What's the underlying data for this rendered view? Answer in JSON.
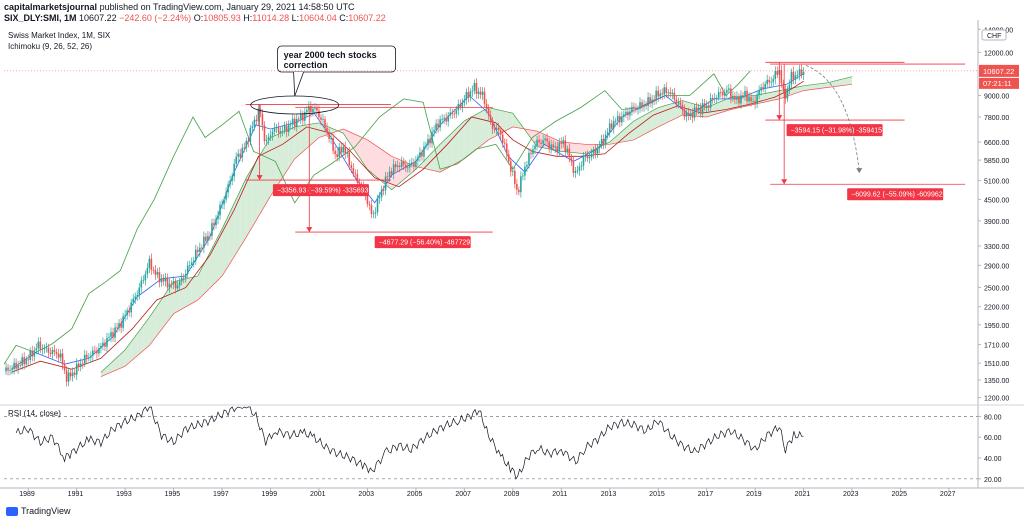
{
  "header": {
    "author": "capitalmarketsjournal",
    "published": "published on TradingView.com, January 29, 2021 14:58:50 UTC",
    "symbol": "SIX_DLY:SMI, 1M",
    "last": "10607.22",
    "change": "−242.60 (−2.24%)",
    "o_label": "O:",
    "o_value": "10805.93",
    "h_label": "H:",
    "h_value": "11014.28",
    "l_label": "L:",
    "l_value": "10604.04",
    "c_label": "C:",
    "c_value": "10607.22"
  },
  "legend": {
    "instrument": "Swiss Market Index, 1M, SIX",
    "indicator": "Ichimoku (9, 26, 52, 26)",
    "rsi": "RSI (14, close)"
  },
  "footer": {
    "brand": "TradingView"
  },
  "colors": {
    "up": "#26a69a",
    "down": "#ef5350",
    "conversion": "#2962ff",
    "base": "#b71c1c",
    "lagging": "#43a047",
    "cloud_bull": "#c8e6c9",
    "cloud_bear": "#ffcdd2",
    "annot": "#f23645",
    "rsi": "#131722"
  },
  "chart_data": [
    {
      "type": "candlestick",
      "title": "Swiss Market Index, 1M, SIX",
      "y_scale": "log",
      "y_ticks": [
        1200,
        1350,
        1510,
        1710,
        1950,
        2200,
        2500,
        2900,
        3300,
        3900,
        4500,
        5100,
        5850,
        6600,
        7800,
        9000,
        10607.22,
        12000,
        14000
      ],
      "y_tick_labels": [
        "1200.00",
        "1350.00",
        "1510.00",
        "1710.00",
        "1950.00",
        "2200.00",
        "2500.00",
        "2900.00",
        "3300.00",
        "3900.00",
        "4500.00",
        "5100.00",
        "5850.00",
        "6600.00",
        "7800.00",
        "9000.00",
        "10607.22",
        "12000.00",
        "14000.00"
      ],
      "y_unit": "CHF",
      "last_price_label": "10607.22",
      "countdown_label": "07:21:11",
      "x_ticks": [
        1989,
        1991,
        1993,
        1995,
        1997,
        1999,
        2001,
        2003,
        2005,
        2007,
        2009,
        2011,
        2013,
        2015,
        2017,
        2019,
        2021,
        2023,
        2025,
        2027
      ],
      "x_range": [
        1988.0,
        2028.2
      ],
      "y_range": [
        1150,
        14500
      ],
      "price_path": [
        [
          1988.0,
          1430
        ],
        [
          1988.5,
          1480
        ],
        [
          1989.0,
          1560
        ],
        [
          1989.4,
          1700
        ],
        [
          1989.8,
          1640
        ],
        [
          1990.3,
          1600
        ],
        [
          1990.6,
          1360
        ],
        [
          1990.9,
          1430
        ],
        [
          1991.3,
          1550
        ],
        [
          1991.7,
          1620
        ],
        [
          1992.0,
          1680
        ],
        [
          1992.4,
          1820
        ],
        [
          1992.8,
          1960
        ],
        [
          1993.2,
          2200
        ],
        [
          1993.6,
          2500
        ],
        [
          1994.0,
          2950
        ],
        [
          1994.3,
          2700
        ],
        [
          1994.8,
          2560
        ],
        [
          1995.2,
          2540
        ],
        [
          1995.6,
          2850
        ],
        [
          1996.0,
          3200
        ],
        [
          1996.5,
          3600
        ],
        [
          1996.9,
          4200
        ],
        [
          1997.3,
          5000
        ],
        [
          1997.6,
          6000
        ],
        [
          1997.9,
          6300
        ],
        [
          1998.3,
          7500
        ],
        [
          1998.55,
          8200
        ],
        [
          1998.8,
          6500
        ],
        [
          1999.1,
          7200
        ],
        [
          1999.5,
          7100
        ],
        [
          1999.9,
          7500
        ],
        [
          2000.3,
          7800
        ],
        [
          2000.6,
          8300
        ],
        [
          2000.9,
          8150
        ],
        [
          2001.3,
          7200
        ],
        [
          2001.7,
          6000
        ],
        [
          2002.0,
          6400
        ],
        [
          2002.5,
          5200
        ],
        [
          2002.9,
          4700
        ],
        [
          2003.2,
          4000
        ],
        [
          2003.6,
          4800
        ],
        [
          2003.9,
          5400
        ],
        [
          2004.3,
          5700
        ],
        [
          2004.7,
          5600
        ],
        [
          2005.0,
          5800
        ],
        [
          2005.5,
          6600
        ],
        [
          2005.9,
          7500
        ],
        [
          2006.3,
          7800
        ],
        [
          2006.7,
          8200
        ],
        [
          2007.0,
          8800
        ],
        [
          2007.4,
          9500
        ],
        [
          2007.8,
          8900
        ],
        [
          2008.1,
          7400
        ],
        [
          2008.5,
          7000
        ],
        [
          2008.9,
          5600
        ],
        [
          2009.2,
          4700
        ],
        [
          2009.5,
          5600
        ],
        [
          2009.9,
          6500
        ],
        [
          2010.3,
          6700
        ],
        [
          2010.7,
          6300
        ],
        [
          2011.1,
          6600
        ],
        [
          2011.6,
          5300
        ],
        [
          2011.9,
          5900
        ],
        [
          2012.3,
          6100
        ],
        [
          2012.7,
          6600
        ],
        [
          2013.1,
          7500
        ],
        [
          2013.5,
          7800
        ],
        [
          2013.9,
          8200
        ],
        [
          2014.3,
          8400
        ],
        [
          2014.7,
          8700
        ],
        [
          2015.0,
          9100
        ],
        [
          2015.4,
          9300
        ],
        [
          2015.8,
          8600
        ],
        [
          2016.2,
          7800
        ],
        [
          2016.6,
          8200
        ],
        [
          2017.0,
          8400
        ],
        [
          2017.4,
          9000
        ],
        [
          2017.9,
          9300
        ],
        [
          2018.2,
          8700
        ],
        [
          2018.6,
          9100
        ],
        [
          2018.9,
          8500
        ],
        [
          2019.3,
          9600
        ],
        [
          2019.7,
          10000
        ],
        [
          2020.0,
          10700
        ],
        [
          2020.2,
          8800
        ],
        [
          2020.5,
          10200
        ],
        [
          2020.8,
          10400
        ],
        [
          2021.0,
          10607.22
        ]
      ],
      "ichimoku_conversion": [
        [
          1988.3,
          1450
        ],
        [
          1989.3,
          1620
        ],
        [
          1990.5,
          1500
        ],
        [
          1991.5,
          1560
        ],
        [
          1992.5,
          1800
        ],
        [
          1993.5,
          2350
        ],
        [
          1994.5,
          2650
        ],
        [
          1995.5,
          2700
        ],
        [
          1996.5,
          3500
        ],
        [
          1997.5,
          5400
        ],
        [
          1998.4,
          7400
        ],
        [
          1999.0,
          7200
        ],
        [
          2000.0,
          7500
        ],
        [
          2000.8,
          8000
        ],
        [
          2001.5,
          6800
        ],
        [
          2002.5,
          5200
        ],
        [
          2003.3,
          4400
        ],
        [
          2004.0,
          5300
        ],
        [
          2005.0,
          5800
        ],
        [
          2006.0,
          7400
        ],
        [
          2007.2,
          9000
        ],
        [
          2008.0,
          8000
        ],
        [
          2008.8,
          6000
        ],
        [
          2009.5,
          5400
        ],
        [
          2010.3,
          6500
        ],
        [
          2011.5,
          5800
        ],
        [
          2012.5,
          6300
        ],
        [
          2013.5,
          7800
        ],
        [
          2014.5,
          8500
        ],
        [
          2015.3,
          9000
        ],
        [
          2016.3,
          7900
        ],
        [
          2017.3,
          8800
        ],
        [
          2018.3,
          8800
        ],
        [
          2019.3,
          9400
        ],
        [
          2020.3,
          9700
        ],
        [
          2021.0,
          10400
        ]
      ],
      "ichimoku_base": [
        [
          1988.3,
          1420
        ],
        [
          1989.5,
          1530
        ],
        [
          1990.8,
          1450
        ],
        [
          1992.0,
          1560
        ],
        [
          1993.3,
          1900
        ],
        [
          1994.3,
          2300
        ],
        [
          1995.5,
          2500
        ],
        [
          1996.5,
          3100
        ],
        [
          1997.5,
          4200
        ],
        [
          1998.5,
          6000
        ],
        [
          1999.5,
          6500
        ],
        [
          2000.5,
          7300
        ],
        [
          2001.5,
          7000
        ],
        [
          2002.3,
          6200
        ],
        [
          2003.3,
          5200
        ],
        [
          2004.3,
          4900
        ],
        [
          2005.3,
          5500
        ],
        [
          2006.3,
          6500
        ],
        [
          2007.3,
          7800
        ],
        [
          2008.3,
          7500
        ],
        [
          2009.0,
          6700
        ],
        [
          2009.8,
          6200
        ],
        [
          2010.8,
          6000
        ],
        [
          2011.8,
          6000
        ],
        [
          2012.8,
          6100
        ],
        [
          2013.8,
          7000
        ],
        [
          2014.8,
          7900
        ],
        [
          2015.8,
          8400
        ],
        [
          2016.8,
          8000
        ],
        [
          2017.8,
          8200
        ],
        [
          2018.8,
          8500
        ],
        [
          2019.8,
          8900
        ],
        [
          2020.5,
          9400
        ],
        [
          2021.0,
          9900
        ]
      ],
      "ichimoku_lagging": [
        [
          1988.0,
          1500
        ],
        [
          1988.5,
          1700
        ],
        [
          1989.3,
          1620
        ],
        [
          1990.0,
          1720
        ],
        [
          1990.8,
          1900
        ],
        [
          1991.5,
          2400
        ],
        [
          1992.2,
          2600
        ],
        [
          1992.8,
          2800
        ],
        [
          1993.5,
          3700
        ],
        [
          1994.2,
          4500
        ],
        [
          1995.0,
          6000
        ],
        [
          1995.8,
          7800
        ],
        [
          1996.3,
          6800
        ],
        [
          1997.0,
          7400
        ],
        [
          1997.7,
          8100
        ],
        [
          1998.3,
          6200
        ],
        [
          1999.2,
          5800
        ],
        [
          2000.0,
          4400
        ],
        [
          2000.8,
          5300
        ],
        [
          2001.5,
          5700
        ],
        [
          2002.5,
          6400
        ],
        [
          2003.5,
          7800
        ],
        [
          2004.5,
          8800
        ],
        [
          2005.3,
          8600
        ],
        [
          2006.0,
          5500
        ],
        [
          2006.7,
          5700
        ],
        [
          2007.5,
          6300
        ],
        [
          2008.3,
          6500
        ],
        [
          2009.0,
          5500
        ],
        [
          2009.8,
          6800
        ],
        [
          2010.8,
          7600
        ],
        [
          2011.8,
          8300
        ],
        [
          2012.8,
          9300
        ],
        [
          2013.5,
          8200
        ],
        [
          2014.3,
          8300
        ],
        [
          2015.3,
          9000
        ],
        [
          2016.3,
          9000
        ],
        [
          2017.3,
          10400
        ],
        [
          2017.8,
          9000
        ],
        [
          2018.3,
          9700
        ],
        [
          2018.8,
          10600
        ]
      ],
      "ichimoku_span_a": [
        [
          1992.0,
          1420
        ],
        [
          1993.0,
          1650
        ],
        [
          1994.0,
          2050
        ],
        [
          1995.0,
          2600
        ],
        [
          1996.0,
          2700
        ],
        [
          1997.0,
          3700
        ],
        [
          1998.0,
          5200
        ],
        [
          1999.0,
          6800
        ],
        [
          2000.0,
          7300
        ],
        [
          2001.0,
          7500
        ],
        [
          2002.0,
          7000
        ],
        [
          2003.0,
          5500
        ],
        [
          2004.0,
          4800
        ],
        [
          2005.0,
          5500
        ],
        [
          2006.0,
          6500
        ],
        [
          2007.0,
          7600
        ],
        [
          2008.0,
          8300
        ],
        [
          2009.0,
          8000
        ],
        [
          2010.0,
          6400
        ],
        [
          2011.0,
          6200
        ],
        [
          2012.0,
          6100
        ],
        [
          2013.0,
          6600
        ],
        [
          2014.0,
          7600
        ],
        [
          2015.0,
          8300
        ],
        [
          2016.0,
          8700
        ],
        [
          2017.0,
          8300
        ],
        [
          2018.0,
          8900
        ],
        [
          2019.0,
          9000
        ],
        [
          2020.0,
          9300
        ],
        [
          2021.0,
          9600
        ],
        [
          2022.0,
          9800
        ],
        [
          2023.0,
          10200
        ]
      ],
      "ichimoku_span_b": [
        [
          1992.0,
          1380
        ],
        [
          1993.0,
          1480
        ],
        [
          1994.0,
          1700
        ],
        [
          1995.0,
          2100
        ],
        [
          1996.0,
          2300
        ],
        [
          1997.0,
          2700
        ],
        [
          1998.0,
          3500
        ],
        [
          1999.0,
          4600
        ],
        [
          2000.0,
          5900
        ],
        [
          2001.0,
          6800
        ],
        [
          2002.0,
          7200
        ],
        [
          2003.0,
          6700
        ],
        [
          2004.0,
          6000
        ],
        [
          2005.0,
          5600
        ],
        [
          2006.0,
          5400
        ],
        [
          2007.0,
          5900
        ],
        [
          2008.0,
          6700
        ],
        [
          2009.0,
          7300
        ],
        [
          2010.0,
          7100
        ],
        [
          2011.0,
          6600
        ],
        [
          2012.0,
          6500
        ],
        [
          2013.0,
          6500
        ],
        [
          2014.0,
          6700
        ],
        [
          2015.0,
          7300
        ],
        [
          2016.0,
          7900
        ],
        [
          2017.0,
          7800
        ],
        [
          2018.0,
          8200
        ],
        [
          2019.0,
          8500
        ],
        [
          2020.0,
          8800
        ],
        [
          2021.0,
          9300
        ],
        [
          2022.0,
          9500
        ],
        [
          2023.0,
          9700
        ]
      ],
      "annotations": [
        {
          "label": "−3356.93 (−39.59%) -335693",
          "x0": 1998.55,
          "y_high": 8480,
          "y_low": 5120,
          "label_x": 1999.1
        },
        {
          "label": "−4677.29 (−56.40%) -467729",
          "x0": 2000.6,
          "y_high": 8300,
          "y_low": 3620,
          "label_x": 2003.3
        },
        {
          "label": "−3594.15 (−31.98%) -359415",
          "x0": 2020.0,
          "y_high": 11230,
          "y_low": 7640,
          "label_x": 2020.3
        },
        {
          "label": "−6099.62 (−55.09%) -609962",
          "x0": 2020.2,
          "y_high": 11100,
          "y_low": 4980,
          "label_x": 2022.8
        }
      ],
      "callout": {
        "text": [
          "year 2000 tech stocks",
          "correction"
        ],
        "x": 2000.2,
        "y": 8800
      }
    },
    {
      "type": "line",
      "title": "RSI (14, close)",
      "y_range": [
        15,
        90
      ],
      "y_ticks": [
        20,
        40,
        60,
        80
      ],
      "y_tick_labels": [
        "20.00",
        "40.00",
        "60.00",
        "80.00"
      ],
      "band": [
        20,
        80
      ],
      "x": [
        1988.5,
        1989.0,
        1989.5,
        1990.0,
        1990.5,
        1990.8,
        1991.5,
        1992.0,
        1992.5,
        1993.0,
        1993.5,
        1994.0,
        1994.5,
        1995.0,
        1995.5,
        1996.0,
        1996.5,
        1997.0,
        1997.5,
        1998.0,
        1998.4,
        1998.8,
        1999.2,
        1999.8,
        2000.4,
        2000.8,
        2001.3,
        2001.8,
        2002.3,
        2002.8,
        2003.2,
        2003.8,
        2004.3,
        2004.8,
        2005.3,
        2005.8,
        2006.3,
        2006.8,
        2007.2,
        2007.6,
        2008.0,
        2008.5,
        2008.9,
        2009.2,
        2009.6,
        2010.0,
        2010.5,
        2011.0,
        2011.6,
        2012.0,
        2012.5,
        2013.0,
        2013.5,
        2014.0,
        2014.5,
        2015.0,
        2015.5,
        2016.0,
        2016.5,
        2017.0,
        2017.5,
        2018.0,
        2018.5,
        2019.0,
        2019.5,
        2020.0,
        2020.25,
        2020.6,
        2021.0
      ],
      "values": [
        64,
        68,
        55,
        60,
        40,
        45,
        58,
        55,
        68,
        75,
        80,
        90,
        62,
        55,
        68,
        72,
        76,
        82,
        88,
        92,
        80,
        56,
        66,
        62,
        64,
        60,
        50,
        44,
        40,
        33,
        28,
        46,
        52,
        48,
        58,
        66,
        72,
        76,
        80,
        86,
        62,
        42,
        30,
        22,
        40,
        50,
        44,
        48,
        36,
        50,
        58,
        70,
        74,
        72,
        66,
        76,
        62,
        52,
        46,
        54,
        62,
        66,
        58,
        48,
        62,
        70,
        48,
        62,
        61
      ]
    }
  ]
}
